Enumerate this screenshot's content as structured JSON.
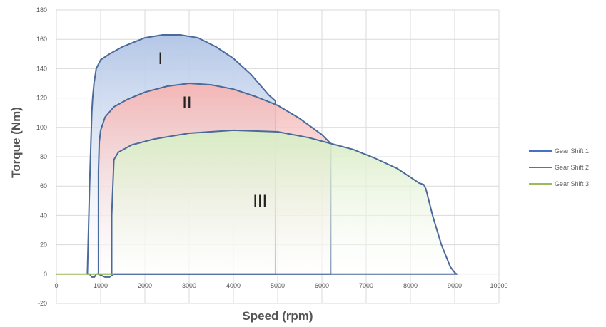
{
  "chart_data": {
    "type": "area",
    "xlabel": "Speed (rpm)",
    "ylabel": "Torque (Nm)",
    "xlim": [
      0,
      10000
    ],
    "ylim": [
      -20,
      180
    ],
    "xticks": [
      0,
      1000,
      2000,
      3000,
      4000,
      5000,
      6000,
      7000,
      8000,
      9000,
      10000
    ],
    "yticks": [
      -20,
      0,
      20,
      40,
      60,
      80,
      100,
      120,
      140,
      160,
      180
    ],
    "grid": true,
    "legend_position": "right",
    "series": [
      {
        "name": "Gear Shift 1",
        "color": "#4472c4",
        "fill": "#b4c7e7",
        "region_label": "I",
        "x": [
          700,
          750,
          800,
          820,
          850,
          900,
          1000,
          1200,
          1500,
          2000,
          2400,
          2800,
          3200,
          3600,
          4000,
          4400,
          4800,
          4950,
          4950,
          2000,
          1000,
          900,
          860,
          800,
          750
        ],
        "y": [
          0,
          60,
          110,
          120,
          130,
          140,
          146,
          150,
          155,
          161,
          163,
          163,
          161,
          155,
          147,
          136,
          122,
          118,
          0,
          0,
          0,
          0,
          -2,
          -2,
          0
        ]
      },
      {
        "name": "Gear Shift 2",
        "color": "#c0504d",
        "fill": "#f4b6b5",
        "region_label": "II",
        "x": [
          950,
          950,
          970,
          1000,
          1100,
          1300,
          1600,
          2000,
          2500,
          3000,
          3500,
          4000,
          4500,
          5000,
          5500,
          6000,
          6200,
          6200,
          3000,
          1300,
          1200,
          1100,
          950
        ],
        "y": [
          0,
          70,
          90,
          98,
          107,
          114,
          119,
          124,
          128,
          130,
          129,
          126,
          121,
          115,
          106,
          95,
          89,
          0,
          0,
          0,
          -2,
          -2,
          0
        ]
      },
      {
        "name": "Gear Shift 3",
        "color": "#9bbb59",
        "fill": "#d8ecc4",
        "region_label": "III",
        "x": [
          1250,
          1250,
          1300,
          1400,
          1700,
          2200,
          3000,
          4000,
          5000,
          5700,
          6200,
          6700,
          7200,
          7700,
          8000,
          8200,
          8300,
          8350,
          8500,
          8700,
          8900,
          9000,
          9050,
          9050,
          1250
        ],
        "y": [
          0,
          40,
          78,
          83,
          88,
          92,
          96,
          98,
          97,
          93,
          89,
          85,
          79,
          72,
          66,
          62,
          61,
          58,
          40,
          20,
          5,
          1,
          0,
          0,
          0
        ]
      }
    ]
  }
}
